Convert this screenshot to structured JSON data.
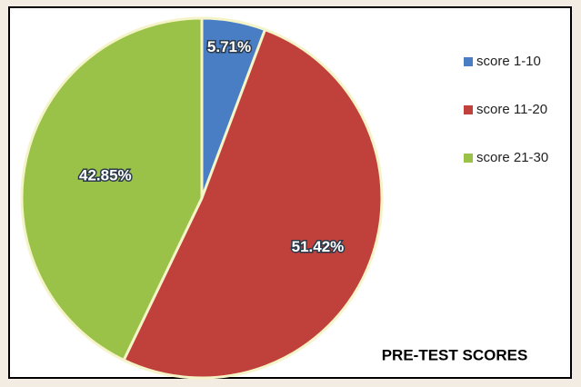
{
  "chart_data": {
    "type": "pie",
    "title": "PRE-TEST SCORES",
    "categories": [
      "score 1-10",
      "score 11-20",
      "score 21-30"
    ],
    "values": [
      5.71,
      51.42,
      42.85
    ],
    "value_labels": [
      "5.71%",
      "51.42%",
      "42.85%"
    ],
    "colors": [
      "#4a7ec4",
      "#c0403c",
      "#9ac148"
    ],
    "legend": "right"
  }
}
